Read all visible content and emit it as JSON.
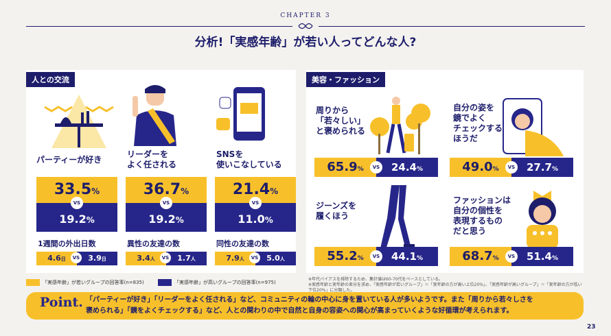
{
  "header": {
    "chapter": "CHAPTER 3",
    "title": "分析!「実感年齢」が若い人ってどんな人?"
  },
  "left": {
    "tag": "人との交流",
    "items": [
      {
        "label": "パーティーが好き",
        "young": "33.5",
        "old": "19.2",
        "unit": "%",
        "vs": "VS"
      },
      {
        "label": "リーダーを\nよく任される",
        "young": "36.7",
        "old": "19.2",
        "unit": "%",
        "vs": "VS"
      },
      {
        "label": "SNSを\n使いこなしている",
        "young": "21.4",
        "old": "11.0",
        "unit": "%",
        "vs": "VS"
      }
    ],
    "stats": [
      {
        "label": "1週間の外出日数",
        "young": "4.6",
        "old": "3.9",
        "unit": "日",
        "vs": "VS"
      },
      {
        "label": "異性の友達の数",
        "young": "3.4",
        "old": "1.7",
        "unit": "人",
        "vs": "VS"
      },
      {
        "label": "同性の友達の数",
        "young": "7.9",
        "old": "5.0",
        "unit": "人",
        "vs": "VS"
      }
    ]
  },
  "right": {
    "tag": "美容・ファッション",
    "items": [
      {
        "label": "周りから\n「若々しい」\nと褒められる",
        "young": "65.9",
        "old": "24.4",
        "unit": "%",
        "vs": "VS"
      },
      {
        "label": "自分の姿を\n鏡でよく\nチェックする\nほうだ",
        "young": "49.0",
        "old": "27.7",
        "unit": "%",
        "vs": "VS"
      },
      {
        "label": "ジーンズを\n履くほう",
        "young": "55.2",
        "old": "44.1",
        "unit": "%",
        "vs": "VS"
      },
      {
        "label": "ファッションは\n自分の個性を\n表現するもの\nだと思う",
        "young": "68.7",
        "old": "51.4",
        "unit": "%",
        "vs": "VS"
      }
    ]
  },
  "legend": {
    "young": "「実感年齢」が若いグループの回答率(n=835)",
    "old": "「実感年齢」が高いグループの回答率(n=975)"
  },
  "notes": {
    "line1": "※年代バイアスを排除するため、集計値は60-70代をベースとしている。",
    "line2": "※実感年齢と実年齢の差分を求め、「実感年齢が若いグループ」＝「実年齢の方が高い上位20%」、「実感年齢が高いグループ」＝「実年齢の方が低い下位20%」に分類した。"
  },
  "point": {
    "label": "Point.",
    "line1": "「パーティーが好き」「リーダーをよく任される」など、コミュニティの輪の中心に身を置いている人が多いようです。また「周りから若々しさを",
    "line2": "褒められる」「鏡をよくチェックする」など、人との関わりの中で自然と自身の容姿への関心が高まっていくような好循環が考えられます。"
  },
  "page": "23",
  "colors": {
    "navy": "#26268a",
    "yellow": "#f7c02b"
  }
}
